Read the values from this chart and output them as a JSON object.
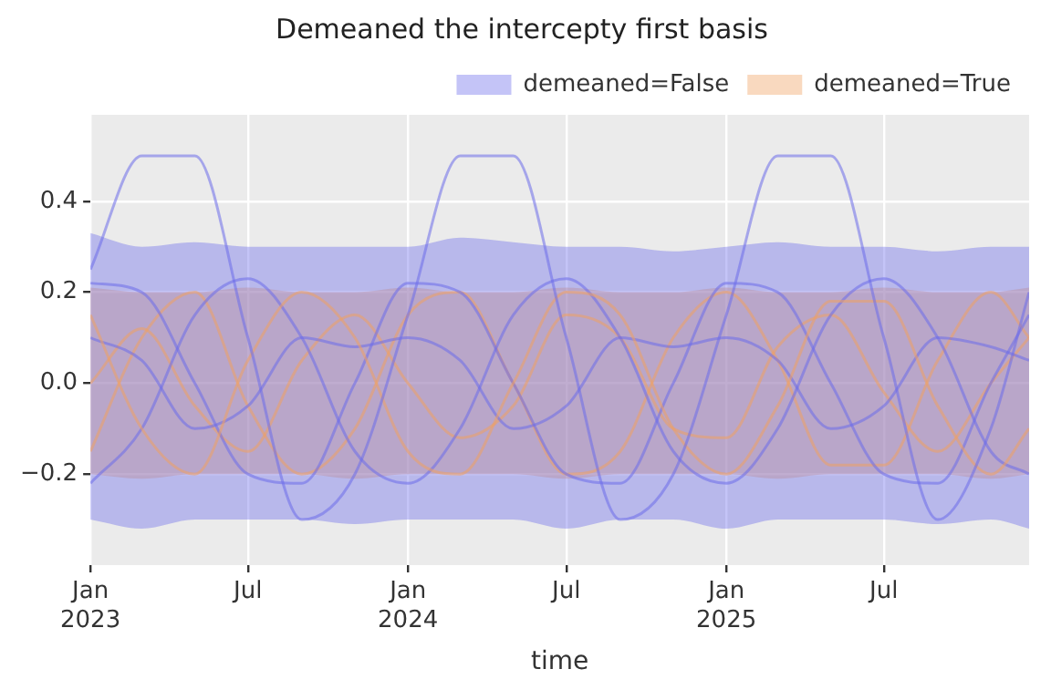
{
  "chart_data": {
    "type": "line",
    "title": "Demeaned the intercepty first basis",
    "xlabel": "time",
    "x": [
      "2023-01",
      "2023-03",
      "2023-05",
      "2023-07",
      "2023-09",
      "2023-11",
      "2024-01",
      "2024-03",
      "2024-05",
      "2024-07",
      "2024-09",
      "2024-11",
      "2025-01",
      "2025-03",
      "2025-05",
      "2025-07",
      "2025-09",
      "2025-11",
      "2025-12-15"
    ],
    "series": [
      {
        "name": "demeaned=False",
        "color": "#6b6bea",
        "values": [
          0.25,
          0.5,
          0.5,
          0.1,
          -0.3,
          -0.2,
          0.15,
          0.5,
          0.5,
          0.1,
          -0.3,
          -0.2,
          0.15,
          0.5,
          0.5,
          0.1,
          -0.3,
          -0.1,
          0.2
        ],
        "lower": [
          -0.3,
          -0.32,
          -0.3,
          -0.3,
          -0.3,
          -0.31,
          -0.3,
          -0.3,
          -0.3,
          -0.32,
          -0.3,
          -0.3,
          -0.32,
          -0.3,
          -0.3,
          -0.3,
          -0.31,
          -0.3,
          -0.32
        ],
        "upper": [
          0.33,
          0.3,
          0.31,
          0.3,
          0.3,
          0.3,
          0.3,
          0.32,
          0.31,
          0.3,
          0.3,
          0.29,
          0.3,
          0.31,
          0.3,
          0.3,
          0.29,
          0.3,
          0.3
        ]
      },
      {
        "name": "demeaned=True",
        "color": "#f0a060",
        "values": [
          0.15,
          -0.1,
          -0.2,
          0.05,
          0.2,
          0.1,
          -0.15,
          -0.2,
          0.0,
          0.2,
          0.15,
          -0.1,
          -0.2,
          -0.05,
          0.18,
          0.18,
          -0.05,
          -0.2,
          -0.1
        ],
        "lower": [
          -0.2,
          -0.21,
          -0.2,
          -0.2,
          -0.2,
          -0.21,
          -0.2,
          -0.2,
          -0.2,
          -0.21,
          -0.2,
          -0.2,
          -0.2,
          -0.21,
          -0.2,
          -0.2,
          -0.2,
          -0.21,
          -0.2
        ],
        "upper": [
          0.21,
          0.2,
          0.2,
          0.21,
          0.2,
          0.2,
          0.21,
          0.2,
          0.2,
          0.21,
          0.2,
          0.2,
          0.21,
          0.2,
          0.2,
          0.21,
          0.2,
          0.2,
          0.21
        ]
      },
      {
        "color": "#6b6bea",
        "values": [
          0.22,
          0.2,
          0.0,
          -0.2,
          -0.22,
          0.0,
          0.22,
          0.2,
          0.0,
          -0.2,
          -0.22,
          0.0,
          0.22,
          0.2,
          0.0,
          -0.2,
          -0.22,
          0.0,
          0.15
        ]
      },
      {
        "color": "#6b6bea",
        "values": [
          -0.22,
          -0.1,
          0.15,
          0.23,
          0.1,
          -0.15,
          -0.22,
          -0.1,
          0.15,
          0.23,
          0.1,
          -0.15,
          -0.22,
          -0.1,
          0.15,
          0.23,
          0.1,
          -0.15,
          -0.2
        ]
      },
      {
        "color": "#6b6bea",
        "values": [
          0.1,
          0.05,
          -0.1,
          -0.05,
          0.1,
          0.08,
          0.1,
          0.05,
          -0.1,
          -0.05,
          0.1,
          0.08,
          0.1,
          0.05,
          -0.1,
          -0.05,
          0.1,
          0.08,
          0.05
        ]
      },
      {
        "color": "#f0a060",
        "values": [
          -0.15,
          0.1,
          0.2,
          -0.05,
          -0.2,
          -0.1,
          0.15,
          0.2,
          0.0,
          -0.2,
          -0.15,
          0.1,
          0.2,
          0.05,
          -0.18,
          -0.18,
          0.05,
          0.2,
          0.1
        ]
      },
      {
        "color": "#f0a060",
        "values": [
          0.0,
          0.12,
          -0.05,
          -0.15,
          0.05,
          0.15,
          0.0,
          -0.12,
          -0.05,
          0.15,
          0.1,
          -0.1,
          -0.12,
          0.08,
          0.15,
          -0.02,
          -0.15,
          0.0,
          0.1
        ]
      }
    ],
    "xlim": [
      "2023-01-01",
      "2025-12-15"
    ],
    "xticks": [
      {
        "value": "2023-01",
        "label": "Jan 2023"
      },
      {
        "value": "2023-07",
        "label": "Jul"
      },
      {
        "value": "2024-01",
        "label": "Jan 2024"
      },
      {
        "value": "2024-07",
        "label": "Jul"
      },
      {
        "value": "2025-01",
        "label": "Jan 2025"
      },
      {
        "value": "2025-07",
        "label": "Jul"
      }
    ],
    "ylim": [
      -0.4,
      0.59
    ],
    "yticks": [
      {
        "value": 0.4,
        "label": "0.4"
      },
      {
        "value": 0.2,
        "label": "0.2"
      },
      {
        "value": 0,
        "label": "0.0"
      },
      {
        "value": -0.2,
        "label": "−0.2"
      }
    ],
    "grid": true,
    "legend": "top right",
    "marker": "none",
    "line_style": "solid"
  }
}
